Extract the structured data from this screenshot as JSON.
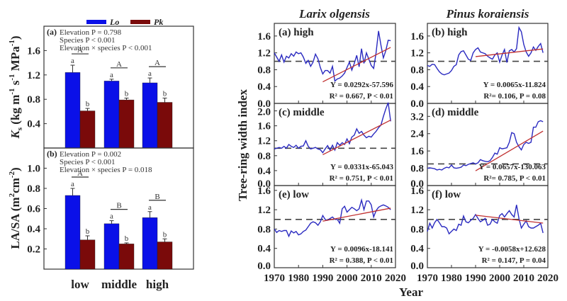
{
  "colors": {
    "lo": "#0a10e8",
    "pk": "#7a0a0a",
    "series": "#2a2ac0",
    "trend": "#c03030",
    "reference": "#444444",
    "frame": "#333333"
  },
  "chart_data": [
    {
      "type": "bar",
      "panel": "(a)",
      "ylabel": "Ks (kg m-1 s-1 MPa-1)",
      "ylim": [
        0,
        2.0
      ],
      "yticks": [
        0.4,
        0.8,
        1.2,
        1.6
      ],
      "ytick_labels": [
        "0.4",
        "0.8",
        "1.2",
        "1.6"
      ],
      "categories": [
        "low",
        "middle",
        "high"
      ],
      "legend": [
        "Lo",
        "Pk"
      ],
      "legend_position": "top",
      "series": [
        {
          "name": "Lo",
          "values": [
            1.24,
            1.1,
            1.07
          ],
          "errors": [
            0.12,
            0.03,
            0.08
          ],
          "letters": [
            "a",
            "a",
            "a"
          ]
        },
        {
          "name": "Pk",
          "values": [
            0.61,
            0.79,
            0.75
          ],
          "errors": [
            0.04,
            0.03,
            0.07
          ],
          "letters": [
            "b",
            "b",
            "b"
          ]
        }
      ],
      "group_letters": [
        "A",
        "A",
        "A"
      ],
      "stats_label": "(a)",
      "stats": [
        "Elevation P = 0.798",
        "Species P < 0.001",
        "Elevation × species P < 0.001"
      ]
    },
    {
      "type": "bar",
      "panel": "(b)",
      "ylabel": "LA/SA (m2cm-2)",
      "ylim": [
        0,
        1.2
      ],
      "yticks": [
        0.2,
        0.4,
        0.6,
        0.8,
        1.0
      ],
      "ytick_labels": [
        "0.2",
        "0.4",
        "0.6",
        "0.8",
        "1.0"
      ],
      "categories": [
        "low",
        "middle",
        "high"
      ],
      "series": [
        {
          "name": "Lo",
          "values": [
            0.73,
            0.45,
            0.51
          ],
          "errors": [
            0.07,
            0.03,
            0.06
          ],
          "letters": [
            "a",
            "a",
            "a"
          ]
        },
        {
          "name": "Pk",
          "values": [
            0.29,
            0.25,
            0.27
          ],
          "errors": [
            0.04,
            0.01,
            0.03
          ],
          "letters": [
            "b",
            "b",
            "b"
          ]
        }
      ],
      "group_letters": [
        "A",
        "B",
        "B"
      ],
      "stats_label": "(b)",
      "stats": [
        "Elevation P = 0.002",
        "Species P < 0.001",
        "Elevation × species P = 0.018"
      ]
    },
    {
      "type": "line",
      "species": "Larix olgensis",
      "panel": "(a) high",
      "ylim": [
        0,
        1.9
      ],
      "yticks": [
        0.0,
        0.4,
        0.8,
        1.2,
        1.6
      ],
      "ytick_labels": [
        "0.0",
        "0.4",
        "0.8",
        "1.2",
        "1.6"
      ],
      "reference": 1.0,
      "x": [
        1970,
        1971,
        1972,
        1973,
        1974,
        1975,
        1976,
        1977,
        1978,
        1979,
        1980,
        1981,
        1982,
        1983,
        1984,
        1985,
        1986,
        1987,
        1988,
        1989,
        1990,
        1991,
        1992,
        1993,
        1994,
        1995,
        1996,
        1997,
        1998,
        1999,
        2000,
        2001,
        2002,
        2003,
        2004,
        2005,
        2006,
        2007,
        2008,
        2009,
        2010,
        2011,
        2012,
        2013,
        2014,
        2015,
        2016,
        2017,
        2018
      ],
      "y": [
        1.2,
        1.1,
        1.0,
        1.15,
        0.98,
        1.12,
        1.08,
        1.18,
        1.12,
        1.22,
        1.18,
        1.2,
        1.1,
        0.95,
        1.02,
        0.88,
        0.98,
        1.17,
        1.06,
        0.85,
        0.7,
        0.78,
        0.78,
        0.72,
        0.88,
        0.53,
        0.58,
        0.6,
        0.65,
        0.72,
        0.85,
        0.98,
        0.79,
        0.95,
        1.14,
        0.87,
        1.3,
        0.95,
        1.2,
        1.05,
        0.9,
        0.83,
        1.2,
        1.72,
        1.38,
        1.08,
        1.25,
        1.5,
        1.49
      ],
      "trend": {
        "x": [
          1990,
          2018
        ],
        "slope": 0.0292,
        "intercept": -57.596
      },
      "equation": "Y = 0.0292x-57.596",
      "r2_text": "R² = 0.667, P < 0.01"
    },
    {
      "type": "line",
      "species": "Pinus koraiensis",
      "panel": "(b) high",
      "ylim": [
        0,
        1.9
      ],
      "yticks": [
        0.0,
        0.4,
        0.8,
        1.2,
        1.6
      ],
      "ytick_labels": [
        "0.0",
        "0.4",
        "0.8",
        "1.2",
        "1.6"
      ],
      "reference": 1.0,
      "x": [
        1970,
        1971,
        1972,
        1973,
        1974,
        1975,
        1976,
        1977,
        1978,
        1979,
        1980,
        1981,
        1982,
        1983,
        1984,
        1985,
        1986,
        1987,
        1988,
        1989,
        1990,
        1991,
        1992,
        1993,
        1994,
        1995,
        1996,
        1997,
        1998,
        1999,
        2000,
        2001,
        2002,
        2003,
        2004,
        2005,
        2006,
        2007,
        2008,
        2009,
        2010,
        2011,
        2012,
        2013,
        2014,
        2015,
        2016,
        2017,
        2018
      ],
      "y": [
        0.9,
        0.88,
        0.93,
        0.92,
        0.83,
        0.75,
        0.7,
        0.68,
        0.7,
        0.72,
        0.78,
        0.88,
        0.92,
        1.15,
        1.23,
        1.25,
        1.15,
        1.05,
        1.02,
        1.2,
        1.28,
        1.32,
        1.22,
        1.2,
        1.18,
        1.12,
        1.08,
        1.05,
        1.15,
        1.2,
        0.98,
        1.15,
        1.28,
        0.97,
        1.25,
        1.28,
        1.22,
        1.3,
        1.8,
        1.7,
        1.4,
        1.22,
        1.12,
        1.2,
        1.34,
        1.26,
        1.35,
        1.42,
        1.2
      ],
      "trend": {
        "x": [
          1990,
          2018
        ],
        "slope": 0.0065,
        "intercept": -11.824
      },
      "equation": "Y = 0.0065x-11.824",
      "r2_text": "R²= 0.106, P = 0.08"
    },
    {
      "type": "line",
      "species": "Larix olgensis",
      "panel": "(c) middle",
      "ylim": [
        0,
        2.2
      ],
      "yticks": [
        0.0,
        0.4,
        0.8,
        1.2,
        1.6,
        2.0
      ],
      "ytick_labels": [
        "0.0",
        "0.4",
        "0.8",
        "1.2",
        "1.6",
        "2.0"
      ],
      "reference": 1.0,
      "x": [
        1970,
        1971,
        1972,
        1973,
        1974,
        1975,
        1976,
        1977,
        1978,
        1979,
        1980,
        1981,
        1982,
        1983,
        1984,
        1985,
        1986,
        1987,
        1988,
        1989,
        1990,
        1991,
        1992,
        1993,
        1994,
        1995,
        1996,
        1997,
        1998,
        1999,
        2000,
        2001,
        2002,
        2003,
        2004,
        2005,
        2006,
        2007,
        2008,
        2009,
        2010,
        2011,
        2012,
        2013,
        2014,
        2015,
        2016,
        2017,
        2018
      ],
      "y": [
        0.98,
        1.0,
        1.02,
        1.0,
        1.05,
        1.0,
        1.1,
        1.05,
        1.02,
        1.08,
        1.0,
        1.05,
        1.06,
        1.2,
        1.05,
        0.98,
        1.0,
        1.02,
        0.98,
        0.96,
        0.88,
        0.98,
        1.07,
        0.95,
        1.08,
        0.95,
        1.15,
        1.08,
        1.15,
        1.1,
        1.25,
        1.12,
        1.3,
        1.35,
        1.52,
        1.4,
        1.45,
        1.35,
        1.28,
        1.32,
        1.3,
        1.38,
        1.45,
        1.55,
        1.62,
        1.85,
        2.05,
        2.22,
        1.72
      ],
      "trend": {
        "x": [
          1990,
          2018
        ],
        "slope": 0.0331,
        "intercept": -65.043
      },
      "equation": "Y = 0.0331x-65.043",
      "r2_text": "R² = 0.751, P < 0.01"
    },
    {
      "type": "line",
      "species": "Pinus koraiensis",
      "panel": "(d) middle",
      "ylim": [
        0,
        3.8
      ],
      "yticks": [
        0.0,
        0.8,
        1.6,
        2.4,
        3.2
      ],
      "ytick_labels": [
        "0.0",
        "0.8",
        "1.6",
        "2.4",
        "3.2"
      ],
      "reference": 1.0,
      "x": [
        1970,
        1971,
        1972,
        1973,
        1974,
        1975,
        1976,
        1977,
        1978,
        1979,
        1980,
        1981,
        1982,
        1983,
        1984,
        1985,
        1986,
        1987,
        1988,
        1989,
        1990,
        1991,
        1992,
        1993,
        1994,
        1995,
        1996,
        1997,
        1998,
        1999,
        2000,
        2001,
        2002,
        2003,
        2004,
        2005,
        2006,
        2007,
        2008,
        2009,
        2010,
        2011,
        2012,
        2013,
        2014,
        2015,
        2016,
        2017,
        2018
      ],
      "y": [
        0.8,
        0.82,
        0.8,
        0.78,
        0.72,
        0.75,
        0.72,
        0.8,
        0.85,
        0.82,
        0.95,
        0.82,
        0.8,
        0.82,
        0.85,
        0.95,
        0.92,
        0.98,
        1.02,
        1.05,
        1.0,
        1.05,
        1.2,
        1.15,
        1.12,
        1.1,
        1.15,
        1.3,
        1.5,
        1.45,
        1.75,
        1.7,
        1.72,
        1.75,
        2.0,
        2.45,
        2.4,
        2.0,
        1.8,
        1.65,
        1.9,
        2.0,
        1.95,
        2.0,
        2.7,
        2.7,
        2.95,
        3.0,
        2.95
      ],
      "trend": {
        "x": [
          1990,
          2018
        ],
        "slope": 0.0657,
        "intercept": -130.063
      },
      "equation": "Y = 0.0657x-130.063",
      "r2_text": "R²= 0.785, P < 0.01"
    },
    {
      "type": "line",
      "species": "Larix olgensis",
      "panel": "(e) low",
      "ylim": [
        0,
        1.7
      ],
      "yticks": [
        0.0,
        0.4,
        0.8,
        1.2,
        1.6
      ],
      "ytick_labels": [
        "0.0",
        "0.4",
        "0.8",
        "1.2",
        "1.6"
      ],
      "reference": 1.0,
      "x": [
        1970,
        1971,
        1972,
        1973,
        1974,
        1975,
        1976,
        1977,
        1978,
        1979,
        1980,
        1981,
        1982,
        1983,
        1984,
        1985,
        1986,
        1987,
        1988,
        1989,
        1990,
        1991,
        1992,
        1993,
        1994,
        1995,
        1996,
        1997,
        1998,
        1999,
        2000,
        2001,
        2002,
        2003,
        2004,
        2005,
        2006,
        2007,
        2008,
        2009,
        2010,
        2011,
        2012,
        2013,
        2014,
        2015,
        2016,
        2017,
        2018
      ],
      "y": [
        0.8,
        0.73,
        0.77,
        0.75,
        0.77,
        0.77,
        0.65,
        0.76,
        0.72,
        0.75,
        0.68,
        0.7,
        0.75,
        0.78,
        0.85,
        0.92,
        0.95,
        0.93,
        0.88,
        0.95,
        1.08,
        1.0,
        0.98,
        1.02,
        1.05,
        1.0,
        1.0,
        0.92,
        1.22,
        1.27,
        1.15,
        1.2,
        1.25,
        1.22,
        1.18,
        1.22,
        1.4,
        1.2,
        1.38,
        1.38,
        1.3,
        1.05,
        1.18,
        1.25,
        1.28,
        1.3,
        1.28,
        1.25,
        1.2
      ],
      "trend": {
        "x": [
          1990,
          2018
        ],
        "slope": 0.0096,
        "intercept": -18.141
      },
      "equation": "Y = 0.0096x-18.141",
      "r2_text": "R² = 0.388, P < 0.01"
    },
    {
      "type": "line",
      "species": "Pinus koraiensis",
      "panel": "(f) low",
      "ylim": [
        0,
        1.7
      ],
      "yticks": [
        0.0,
        0.4,
        0.8,
        1.2,
        1.6
      ],
      "ytick_labels": [
        "0.0",
        "0.4",
        "0.8",
        "1.2",
        "1.6"
      ],
      "reference": 1.0,
      "x": [
        1970,
        1971,
        1972,
        1973,
        1974,
        1975,
        1976,
        1977,
        1978,
        1979,
        1980,
        1981,
        1982,
        1983,
        1984,
        1985,
        1986,
        1987,
        1988,
        1989,
        1990,
        1991,
        1992,
        1993,
        1994,
        1995,
        1996,
        1997,
        1998,
        1999,
        2000,
        2001,
        2002,
        2003,
        2004,
        2005,
        2006,
        2007,
        2008,
        2009,
        2010,
        2011,
        2012,
        2013,
        2014,
        2015,
        2016,
        2017,
        2018
      ],
      "y": [
        0.75,
        0.92,
        0.82,
        0.93,
        1.0,
        0.93,
        0.85,
        0.85,
        0.82,
        0.7,
        0.75,
        0.8,
        0.77,
        0.9,
        0.88,
        1.07,
        0.95,
        0.93,
        0.98,
        1.02,
        1.1,
        1.02,
        0.95,
        0.98,
        1.02,
        0.88,
        0.9,
        1.0,
        0.95,
        0.92,
        1.08,
        1.12,
        1.05,
        1.12,
        1.18,
        1.1,
        1.05,
        1.3,
        1.02,
        0.82,
        0.9,
        0.97,
        0.85,
        0.82,
        0.82,
        0.85,
        0.88,
        0.92,
        0.72
      ],
      "trend": {
        "x": [
          1990,
          2018
        ],
        "slope": -0.0058,
        "intercept": 12.628
      },
      "equation": "Y = -0.0058x+12.628",
      "r2_text": "R² = 0.147, P = 0.04"
    }
  ],
  "shared": {
    "xlabel": "Year",
    "ylabel": "Tree-ring width index",
    "xlim": [
      1970,
      2020
    ],
    "xticks": [
      1970,
      1980,
      1990,
      2000,
      2010,
      2020
    ],
    "xtick_labels": [
      "1970",
      "1980",
      "1990",
      "2000",
      "2010",
      "2020"
    ],
    "column_titles": [
      "Larix olgensis",
      "Pinus koraiensis"
    ],
    "bar_categories": [
      "low",
      "middle",
      "high"
    ]
  },
  "labels": {
    "ks_main": "K",
    "ks_sub": "s",
    "ks_rest": " (kg m",
    "ks_sup1": "-1",
    "ks_mid": " s",
    "ks_sup2": "-1",
    "ks_end": " MPa",
    "ks_sup3": "-1",
    "ks_close": ")",
    "lasa_main": "LA/SA (m",
    "lasa_sup1": "2",
    "lasa_mid": "cm",
    "lasa_sup2": "-2",
    "lasa_close": ")"
  }
}
